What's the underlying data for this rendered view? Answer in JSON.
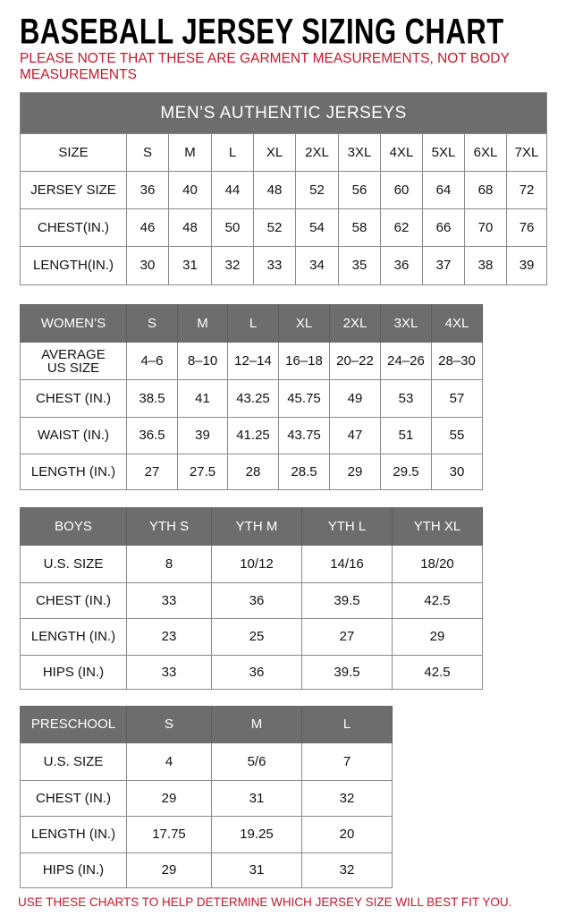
{
  "title": "BASEBALL JERSEY SIZING CHART",
  "note": "PLEASE NOTE THAT THESE ARE GARMENT MEASUREMENTS, NOT BODY MEASUREMENTS",
  "footer": "USE THESE CHARTS TO HELP DETERMINE WHICH JERSEY SIZE WILL BEST FIT YOU.",
  "colors": {
    "header_bg": "#6d6d6d",
    "accent_red": "#c3182d"
  },
  "tables": [
    {
      "banner": "MEN’S AUTHENTIC JERSEYS",
      "header": [
        "SIZE",
        "S",
        "M",
        "L",
        "XL",
        "2XL",
        "3XL",
        "4XL",
        "5XL",
        "6XL",
        "7XL"
      ],
      "header_is_dark": false,
      "rows": [
        [
          "JERSEY SIZE",
          "36",
          "40",
          "44",
          "48",
          "52",
          "56",
          "60",
          "64",
          "68",
          "72"
        ],
        [
          "CHEST(IN.)",
          "46",
          "48",
          "50",
          "52",
          "54",
          "58",
          "62",
          "66",
          "70",
          "76"
        ],
        [
          "LENGTH(IN.)",
          "30",
          "31",
          "32",
          "33",
          "34",
          "35",
          "36",
          "37",
          "38",
          "39"
        ]
      ]
    },
    {
      "header": [
        "WOMEN’S",
        "S",
        "M",
        "L",
        "XL",
        "2XL",
        "3XL",
        "4XL"
      ],
      "header_is_dark": true,
      "rows": [
        [
          "AVERAGE US SIZE",
          "4–6",
          "8–10",
          "12–14",
          "16–18",
          "20–22",
          "24–26",
          "28–30"
        ],
        [
          "CHEST (IN.)",
          "38.5",
          "41",
          "43.25",
          "45.75",
          "49",
          "53",
          "57"
        ],
        [
          "WAIST (IN.)",
          "36.5",
          "39",
          "41.25",
          "43.75",
          "47",
          "51",
          "55"
        ],
        [
          "LENGTH (IN.)",
          "27",
          "27.5",
          "28",
          "28.5",
          "29",
          "29.5",
          "30"
        ]
      ]
    },
    {
      "header": [
        "BOYS",
        "YTH S",
        "YTH M",
        "YTH L",
        "YTH XL"
      ],
      "header_is_dark": true,
      "rows": [
        [
          "U.S. SIZE",
          "8",
          "10/12",
          "14/16",
          "18/20"
        ],
        [
          "CHEST (IN.)",
          "33",
          "36",
          "39.5",
          "42.5"
        ],
        [
          "LENGTH (IN.)",
          "23",
          "25",
          "27",
          "29"
        ],
        [
          "HIPS (IN.)",
          "33",
          "36",
          "39.5",
          "42.5"
        ]
      ]
    },
    {
      "header": [
        "PRESCHOOL",
        "S",
        "M",
        "L"
      ],
      "header_is_dark": true,
      "rows": [
        [
          "U.S. SIZE",
          "4",
          "5/6",
          "7"
        ],
        [
          "CHEST (IN.)",
          "29",
          "31",
          "32"
        ],
        [
          "LENGTH (IN.)",
          "17.75",
          "19.25",
          "20"
        ],
        [
          "HIPS (IN.)",
          "29",
          "31",
          "32"
        ]
      ]
    }
  ]
}
